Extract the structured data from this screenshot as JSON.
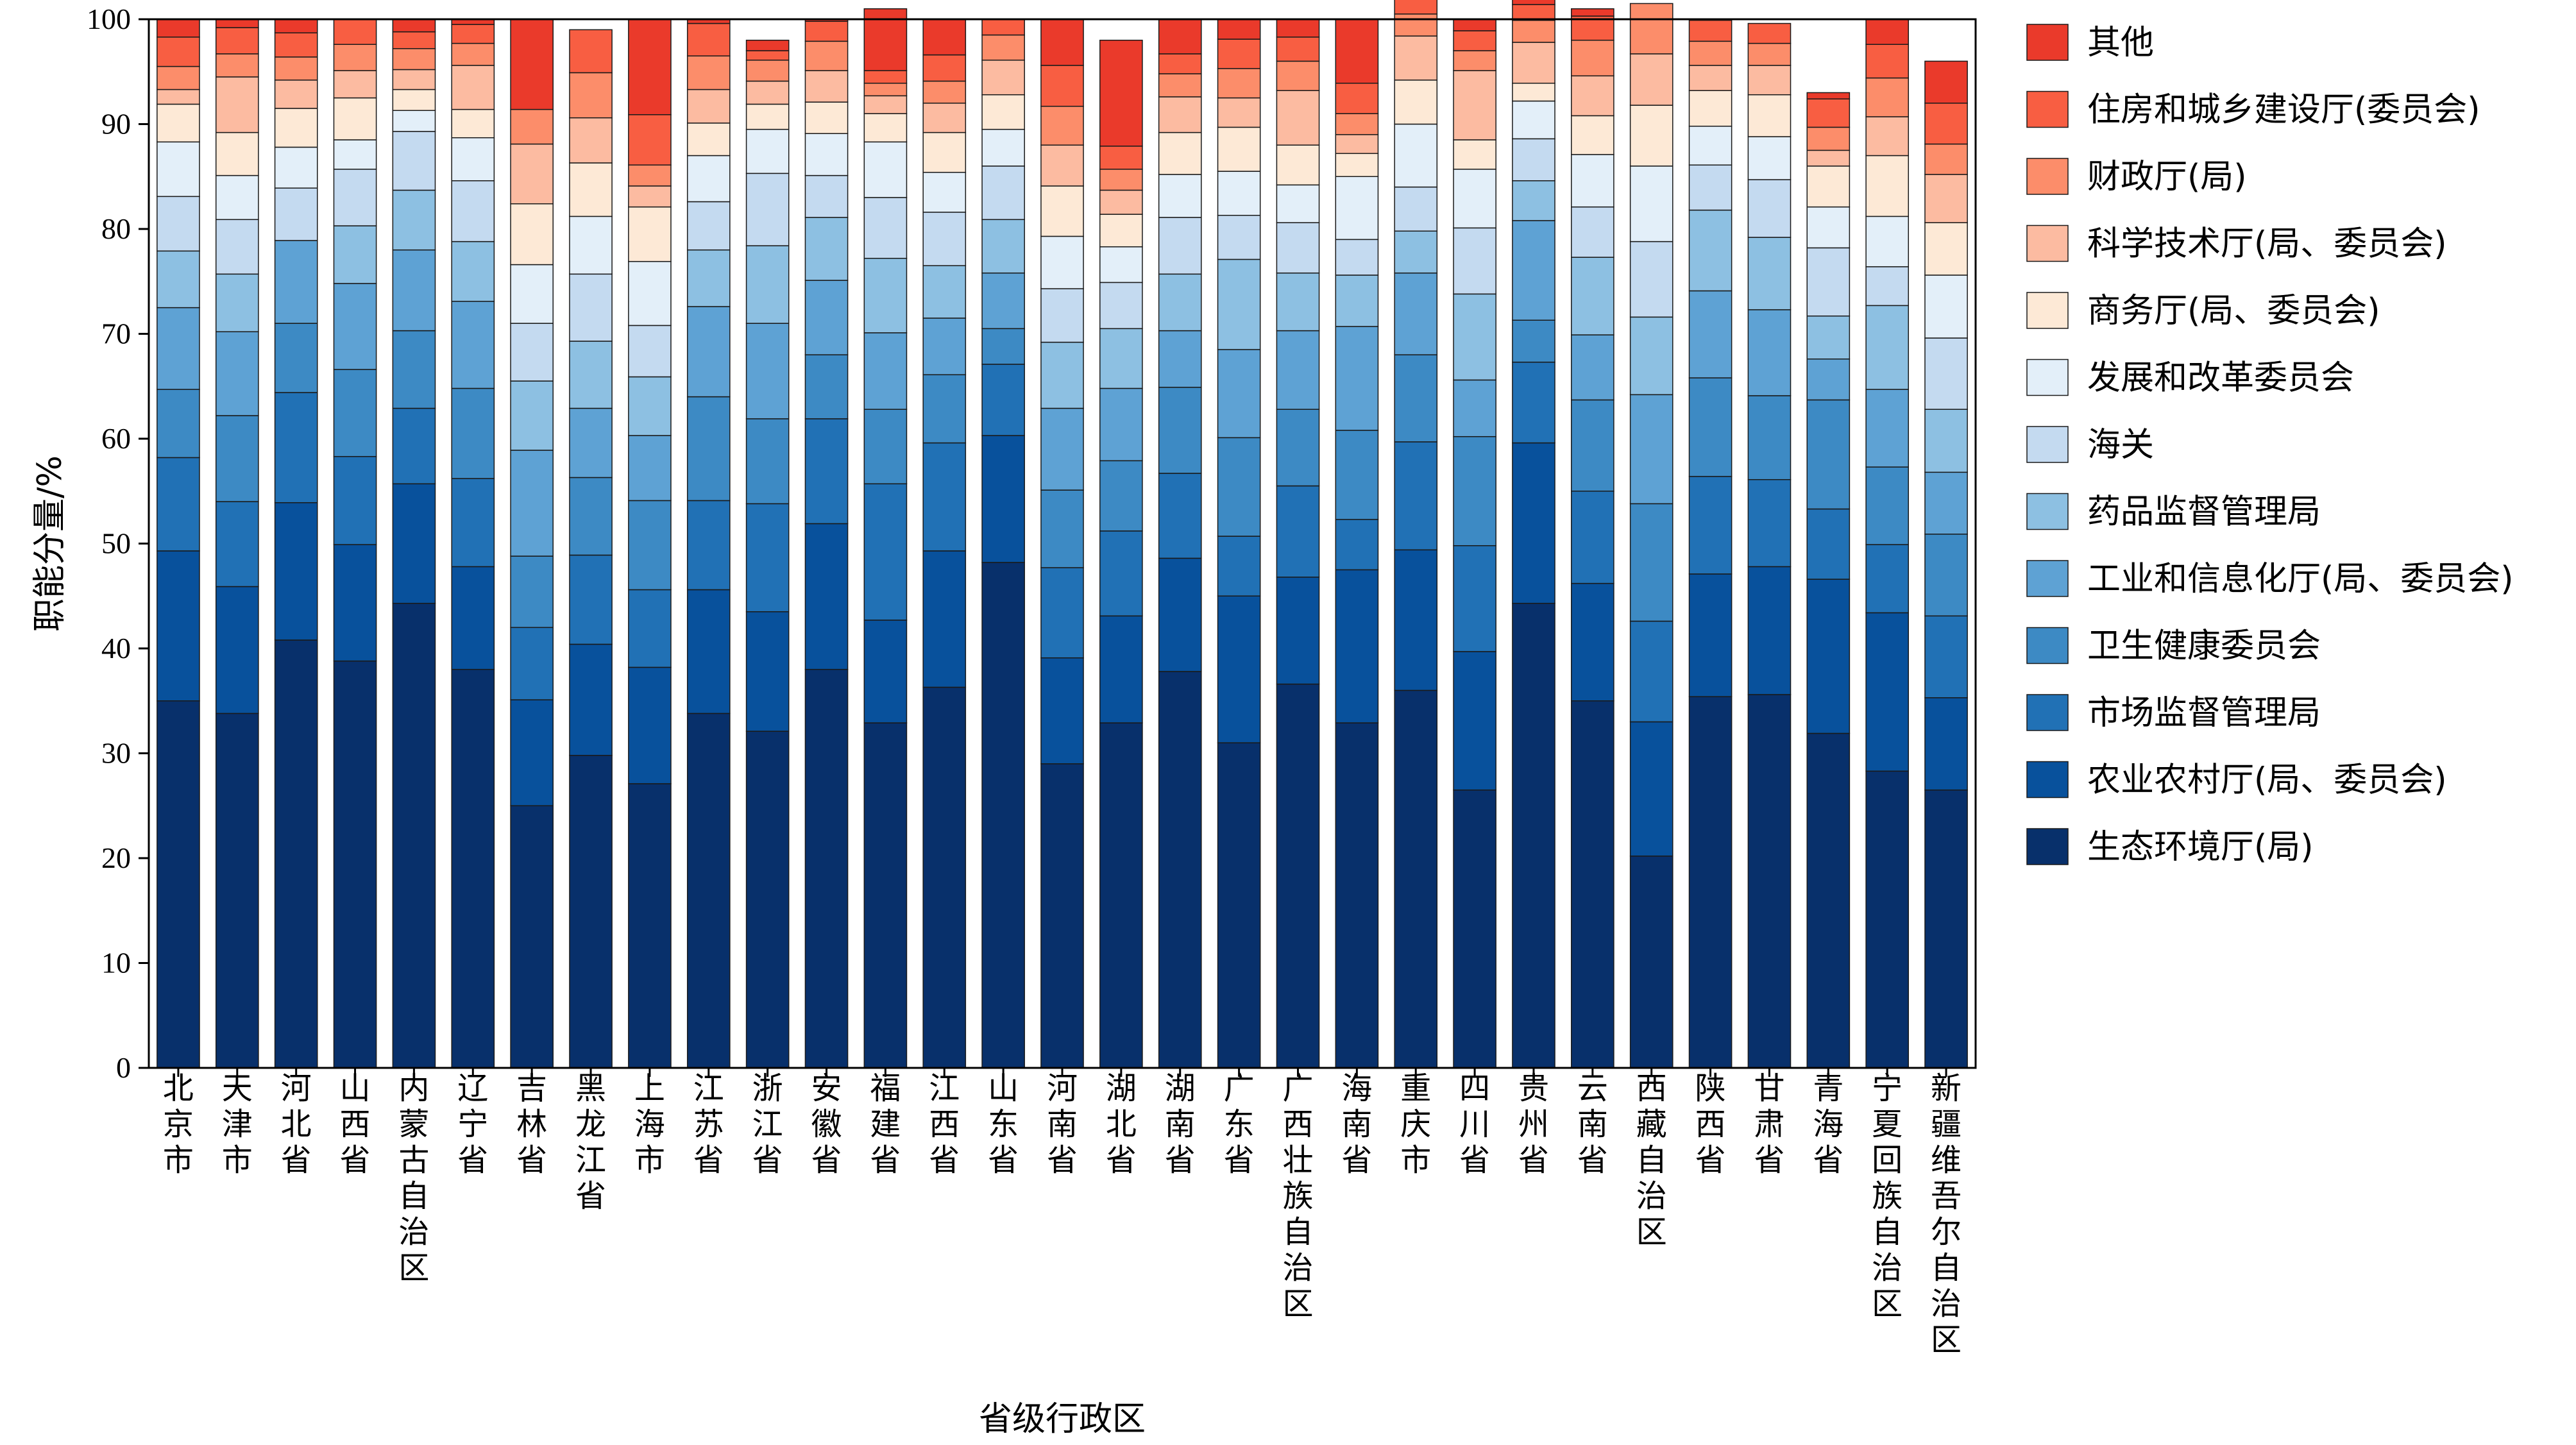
{
  "chart_data": {
    "type": "bar",
    "stacked": true,
    "title": "",
    "xlabel": "省级行政区",
    "ylabel": "职能分量/%",
    "ylim": [
      0,
      100
    ],
    "yticks": [
      0,
      10,
      20,
      30,
      40,
      50,
      60,
      70,
      80,
      90,
      100
    ],
    "grid": false,
    "legend_position": "right",
    "categories": [
      "北京市",
      "天津市",
      "河北省",
      "山西省",
      "内蒙古自治区",
      "辽宁省",
      "吉林省",
      "黑龙江省",
      "上海市",
      "江苏省",
      "浙江省",
      "安徽省",
      "福建省",
      "江西省",
      "山东省",
      "河南省",
      "湖北省",
      "湖南省",
      "广东省",
      "广西壮族自治区",
      "海南省",
      "重庆市",
      "四川省",
      "贵州省",
      "云南省",
      "西藏自治区",
      "陕西省",
      "甘肃省",
      "青海省",
      "宁夏回族自治区",
      "新疆维吾尔自治区"
    ],
    "series": [
      {
        "name": "生态环境厅(局)",
        "color": "#08306b",
        "values": [
          35.0,
          33.8,
          40.8,
          38.8,
          44.3,
          38.0,
          25.0,
          29.8,
          27.1,
          33.8,
          32.1,
          38.0,
          32.9,
          36.3,
          48.2,
          29.0,
          32.9,
          37.8,
          31.0,
          36.6,
          32.9,
          36.0,
          26.5,
          44.3,
          35.0,
          20.2,
          35.4,
          35.6,
          31.9,
          28.3,
          26.5
        ]
      },
      {
        "name": "农业农村厅(局、委员会)",
        "color": "#08519c",
        "values": [
          14.3,
          12.1,
          13.1,
          11.1,
          11.4,
          9.8,
          10.1,
          10.6,
          11.1,
          11.8,
          11.4,
          13.9,
          9.8,
          13.0,
          12.1,
          10.1,
          10.2,
          10.8,
          14.0,
          10.2,
          14.6,
          13.4,
          13.2,
          15.3,
          11.2,
          12.8,
          11.7,
          12.2,
          14.7,
          15.1,
          8.8
        ]
      },
      {
        "name": "市场监督管理局",
        "color": "#2171b5",
        "values": [
          8.9,
          8.1,
          10.5,
          8.4,
          7.2,
          8.4,
          6.9,
          8.5,
          7.4,
          8.5,
          10.3,
          10.0,
          13.0,
          10.3,
          6.8,
          8.6,
          8.1,
          8.1,
          5.7,
          8.7,
          4.8,
          10.3,
          10.1,
          7.7,
          8.8,
          9.6,
          9.3,
          8.3,
          6.7,
          6.5,
          7.8
        ]
      },
      {
        "name": "卫生健康委员会",
        "color": "#3d8ac4",
        "values": [
          6.5,
          8.2,
          6.6,
          8.3,
          7.4,
          8.6,
          6.8,
          7.4,
          8.5,
          9.9,
          8.1,
          6.1,
          7.1,
          6.5,
          3.4,
          7.4,
          6.7,
          8.2,
          9.4,
          7.3,
          8.5,
          8.3,
          10.4,
          4.0,
          8.7,
          11.2,
          9.4,
          8.0,
          10.4,
          7.4,
          7.8
        ]
      },
      {
        "name": "工业和信息化厅(局、委员会)",
        "color": "#5ea2d4",
        "values": [
          7.8,
          8.0,
          7.9,
          8.2,
          7.7,
          8.3,
          10.1,
          6.6,
          6.2,
          8.6,
          9.1,
          7.1,
          7.3,
          5.4,
          5.3,
          7.8,
          6.9,
          5.4,
          8.4,
          7.5,
          9.9,
          7.8,
          5.4,
          9.5,
          6.2,
          10.4,
          8.3,
          8.2,
          3.9,
          7.4,
          5.9
        ]
      },
      {
        "name": "药品监督管理局",
        "color": "#8dc0e2",
        "values": [
          5.4,
          5.5,
          0,
          5.5,
          5.7,
          5.7,
          6.6,
          6.4,
          5.6,
          5.4,
          7.4,
          6.0,
          7.1,
          5.0,
          5.1,
          6.3,
          5.7,
          5.4,
          8.6,
          5.5,
          4.9,
          4.0,
          8.2,
          3.8,
          7.4,
          7.4,
          7.7,
          6.9,
          4.1,
          8.0,
          6.0
        ]
      },
      {
        "name": "海关",
        "color": "#c4daf0",
        "values": [
          5.2,
          5.2,
          5.0,
          5.4,
          5.6,
          5.8,
          5.5,
          6.4,
          4.9,
          4.6,
          6.9,
          4.0,
          5.8,
          5.1,
          5.1,
          5.1,
          4.4,
          5.4,
          4.2,
          4.8,
          3.4,
          4.2,
          6.3,
          4.0,
          4.8,
          7.2,
          4.3,
          5.5,
          6.5,
          3.7,
          6.8
        ]
      },
      {
        "name": "发展和改革委员会",
        "color": "#e3eff9",
        "values": [
          5.2,
          4.2,
          3.9,
          2.8,
          2.0,
          4.1,
          5.6,
          5.5,
          6.1,
          4.4,
          4.2,
          4.0,
          5.3,
          3.8,
          3.5,
          5.0,
          3.4,
          4.1,
          4.2,
          3.6,
          6.0,
          6.0,
          5.6,
          3.6,
          5.0,
          7.2,
          3.7,
          4.1,
          3.9,
          4.8,
          6.0
        ]
      },
      {
        "name": "商务厅(局、委员会)",
        "color": "#fde9d6",
        "values": [
          3.6,
          4.1,
          3.7,
          4.0,
          2.0,
          2.7,
          5.8,
          5.1,
          5.2,
          3.1,
          2.4,
          3.0,
          2.7,
          3.8,
          3.3,
          4.8,
          3.1,
          4.0,
          4.2,
          3.8,
          2.2,
          4.2,
          2.8,
          1.7,
          3.7,
          5.8,
          3.4,
          4.0,
          3.9,
          5.8,
          5.0
        ]
      },
      {
        "name": "科学技术厅(局、委员会)",
        "color": "#fcbba1",
        "values": [
          1.4,
          5.3,
          2.7,
          2.6,
          1.9,
          4.2,
          5.7,
          4.3,
          2.0,
          3.2,
          2.2,
          3.0,
          1.7,
          2.8,
          3.3,
          3.9,
          2.3,
          3.4,
          2.8,
          5.2,
          1.8,
          4.2,
          6.6,
          3.9,
          3.8,
          4.9,
          2.4,
          2.8,
          1.5,
          3.7,
          4.6
        ]
      },
      {
        "name": "财政厅(局)",
        "color": "#fc8d6a",
        "values": [
          2.2,
          2.2,
          2.2,
          2.5,
          2.0,
          2.1,
          3.3,
          4.3,
          2.0,
          3.2,
          2.0,
          2.8,
          1.2,
          2.1,
          2.4,
          3.7,
          2.0,
          2.2,
          2.8,
          2.8,
          2.0,
          2.1,
          1.9,
          2.1,
          3.4,
          4.8,
          2.3,
          2.1,
          2.2,
          3.7,
          2.9
        ]
      },
      {
        "name": "住房和城乡建设厅(委员会)",
        "color": "#f85e42",
        "values": [
          2.8,
          2.5,
          2.3,
          2.4,
          1.6,
          1.8,
          0,
          4.1,
          4.8,
          3.1,
          0.9,
          1.9,
          1.2,
          2.5,
          1.5,
          3.9,
          2.2,
          1.9,
          2.8,
          2.3,
          2.9,
          1.6,
          1.9,
          1.5,
          2.3,
          0,
          2.0,
          1.9,
          2.7,
          3.2,
          3.9
        ]
      },
      {
        "name": "其他",
        "color": "#ea3a2b",
        "values": [
          1.7,
          0.8,
          1.3,
          0,
          1.2,
          0.5,
          8.6,
          0,
          9.1,
          0.4,
          1.0,
          0.2,
          5.9,
          3.4,
          0,
          4.4,
          10.1,
          3.3,
          1.9,
          1.7,
          6.1,
          0,
          1.1,
          1.6,
          0.7,
          0,
          0,
          0,
          0.6,
          2.4,
          4.0
        ]
      }
    ]
  }
}
